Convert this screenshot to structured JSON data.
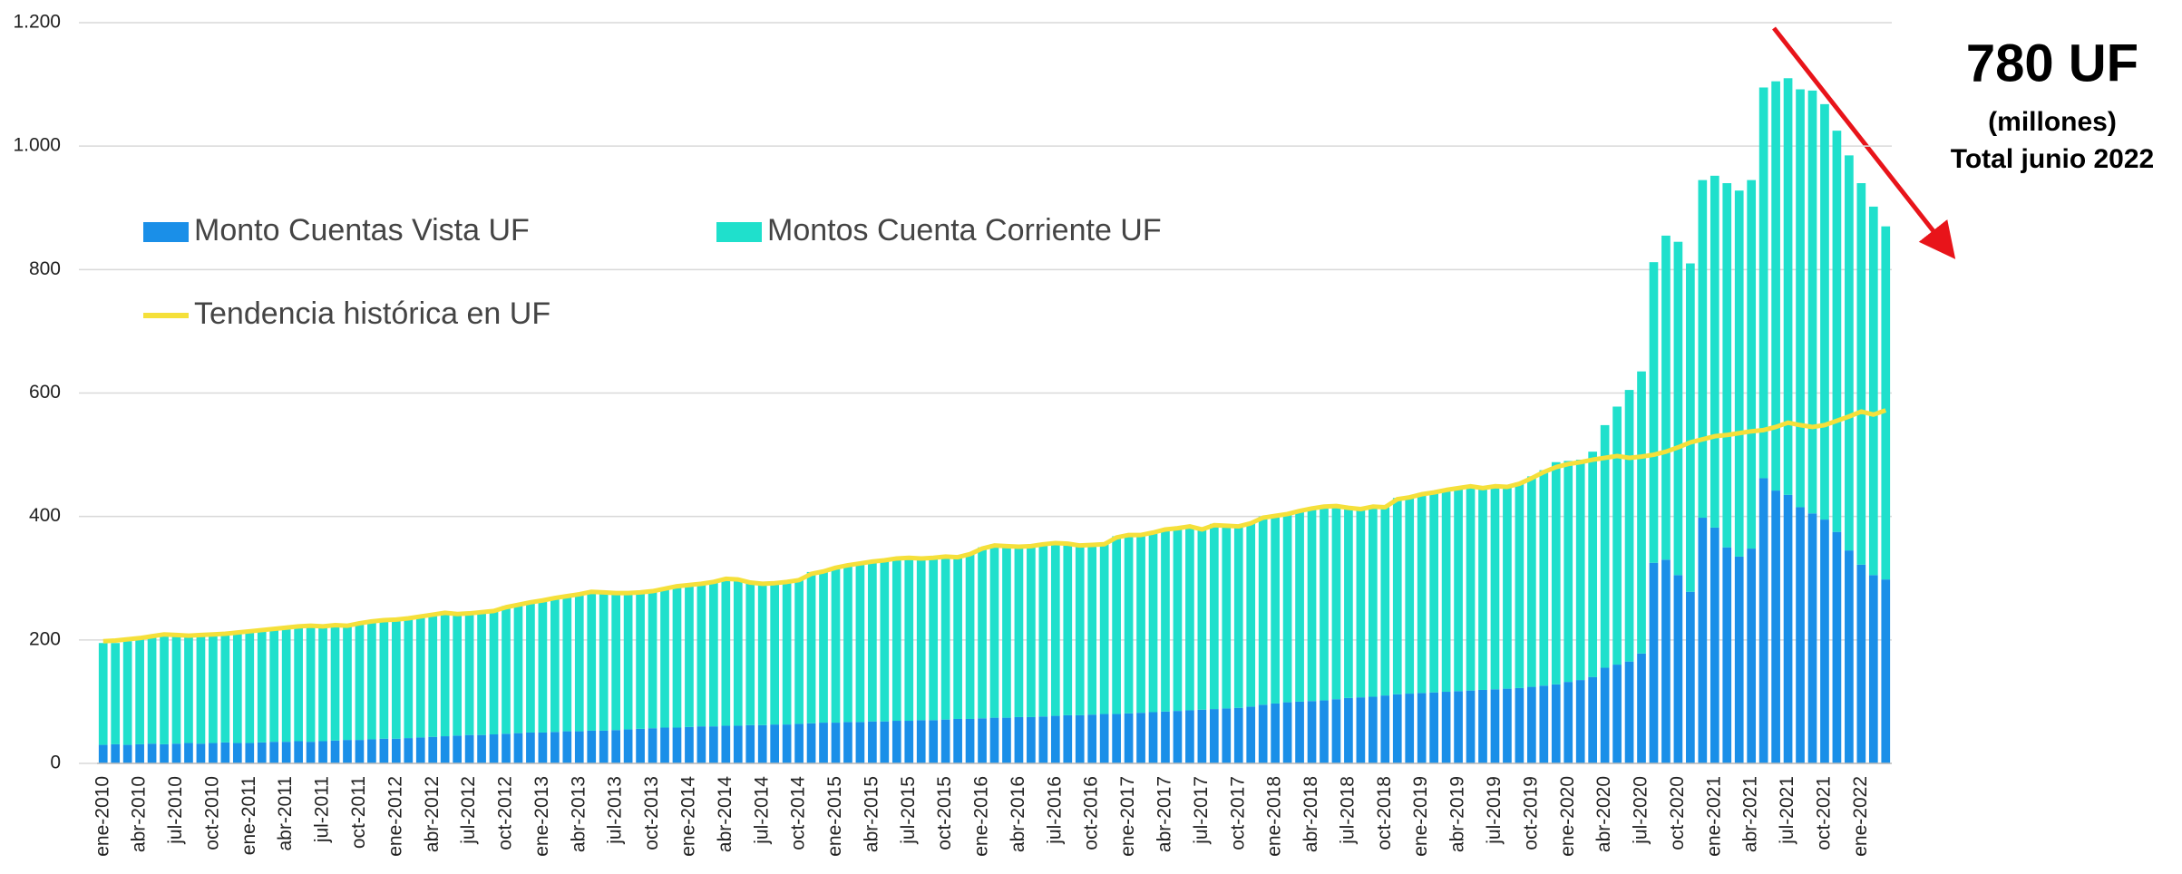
{
  "chart_data": {
    "type": "bar",
    "stacked": true,
    "grid": true,
    "categories": [
      "ene-2010",
      null,
      null,
      "abr-2010",
      null,
      null,
      "jul-2010",
      null,
      null,
      "oct-2010",
      null,
      null,
      "ene-2011",
      null,
      null,
      "abr-2011",
      null,
      null,
      "jul-2011",
      null,
      null,
      "oct-2011",
      null,
      null,
      "ene-2012",
      null,
      null,
      "abr-2012",
      null,
      null,
      "jul-2012",
      null,
      null,
      "oct-2012",
      null,
      null,
      "ene-2013",
      null,
      null,
      "abr-2013",
      null,
      null,
      "jul-2013",
      null,
      null,
      "oct-2013",
      null,
      null,
      "ene-2014",
      null,
      null,
      "abr-2014",
      null,
      null,
      "jul-2014",
      null,
      null,
      "oct-2014",
      null,
      null,
      "ene-2015",
      null,
      null,
      "abr-2015",
      null,
      null,
      "jul-2015",
      null,
      null,
      "oct-2015",
      null,
      null,
      "ene-2016",
      null,
      null,
      "abr-2016",
      null,
      null,
      "jul-2016",
      null,
      null,
      "oct-2016",
      null,
      null,
      "ene-2017",
      null,
      null,
      "abr-2017",
      null,
      null,
      "jul-2017",
      null,
      null,
      "oct-2017",
      null,
      null,
      "ene-2018",
      null,
      null,
      "abr-2018",
      null,
      null,
      "jul-2018",
      null,
      null,
      "oct-2018",
      null,
      null,
      "ene-2019",
      null,
      null,
      "abr-2019",
      null,
      null,
      "jul-2019",
      null,
      null,
      "oct-2019",
      null,
      null,
      "ene-2020",
      null,
      null,
      "abr-2020",
      null,
      null,
      "jul-2020",
      null,
      null,
      "oct-2020",
      null,
      null,
      "ene-2021",
      null,
      null,
      "abr-2021",
      null,
      null,
      "jul-2021",
      null,
      null,
      "oct-2021",
      null,
      null,
      "ene-2022",
      null,
      null
    ],
    "series": [
      {
        "name": "Monto Cuentas Vista UF",
        "color": "#1a8fe8",
        "type": "bar",
        "values": [
          30,
          31,
          30,
          31,
          32,
          31,
          32,
          33,
          32,
          33,
          34,
          33,
          33,
          34,
          35,
          35,
          36,
          35,
          36,
          37,
          38,
          38,
          39,
          40,
          40,
          41,
          42,
          43,
          44,
          45,
          46,
          46,
          47,
          48,
          49,
          50,
          50,
          51,
          52,
          52,
          53,
          53,
          54,
          55,
          56,
          57,
          58,
          58,
          59,
          60,
          60,
          61,
          61,
          62,
          62,
          63,
          63,
          64,
          65,
          66,
          66,
          67,
          67,
          68,
          68,
          69,
          69,
          70,
          70,
          71,
          72,
          72,
          73,
          74,
          74,
          75,
          75,
          76,
          77,
          78,
          78,
          79,
          80,
          80,
          81,
          82,
          83,
          84,
          85,
          86,
          87,
          88,
          89,
          90,
          92,
          95,
          97,
          99,
          100,
          101,
          102,
          104,
          106,
          107,
          108,
          110,
          112,
          113,
          114,
          115,
          116,
          117,
          118,
          119,
          120,
          121,
          122,
          124,
          126,
          128,
          132,
          135,
          140,
          155,
          160,
          165,
          178,
          325,
          330,
          305,
          278,
          398,
          382,
          350,
          335,
          348,
          462,
          442,
          435,
          415,
          405,
          395,
          375,
          345,
          322,
          305,
          298
        ]
      },
      {
        "name": "Montos Cuenta Corriente UF",
        "color": "#1fe0cc",
        "type": "bar",
        "values": [
          165,
          164,
          168,
          171,
          173,
          177,
          173,
          172,
          175,
          175,
          176,
          179,
          180,
          181,
          183,
          185,
          186,
          187,
          184,
          188,
          184,
          190,
          191,
          192,
          192,
          194,
          196,
          199,
          201,
          195,
          198,
          199,
          199,
          207,
          209,
          212,
          215,
          217,
          220,
          223,
          227,
          225,
          222,
          220,
          222,
          223,
          227,
          230,
          231,
          232,
          235,
          239,
          237,
          230,
          228,
          229,
          232,
          234,
          245,
          246,
          252,
          255,
          258,
          260,
          262,
          264,
          266,
          262,
          264,
          265,
          262,
          268,
          277,
          281,
          278,
          275,
          277,
          279,
          281,
          278,
          274,
          275,
          275,
          288,
          291,
          288,
          292,
          296,
          297,
          299,
          291,
          300,
          296,
          293,
          298,
          305,
          305,
          306,
          310,
          314,
          316,
          314,
          309,
          305,
          310,
          305,
          318,
          319,
          324,
          325,
          329,
          331,
          332,
          326,
          330,
          327,
          333,
          341,
          349,
          360,
          358,
          357,
          365,
          393,
          418,
          440,
          457,
          487,
          525,
          540,
          532,
          547,
          570,
          590,
          593,
          597,
          633,
          663,
          675,
          677,
          685,
          673,
          650,
          640,
          618,
          597,
          572
        ]
      },
      {
        "name": "Tendencia histórica en UF",
        "color": "#f5e03a",
        "type": "line",
        "values": [
          198,
          199,
          201,
          203,
          206,
          209,
          208,
          207,
          208,
          209,
          210,
          212,
          214,
          216,
          218,
          220,
          222,
          223,
          222,
          224,
          223,
          227,
          230,
          232,
          233,
          235,
          238,
          241,
          244,
          242,
          243,
          245,
          247,
          253,
          257,
          261,
          264,
          268,
          271,
          274,
          278,
          277,
          276,
          276,
          277,
          279,
          283,
          287,
          289,
          291,
          294,
          299,
          298,
          293,
          291,
          292,
          294,
          297,
          307,
          311,
          317,
          321,
          324,
          327,
          329,
          332,
          333,
          332,
          333,
          335,
          334,
          339,
          348,
          353,
          352,
          351,
          352,
          355,
          357,
          356,
          353,
          354,
          355,
          366,
          370,
          370,
          374,
          379,
          381,
          384,
          379,
          386,
          385,
          384,
          389,
          398,
          401,
          404,
          409,
          413,
          416,
          417,
          414,
          412,
          416,
          415,
          428,
          431,
          436,
          439,
          443,
          446,
          449,
          446,
          449,
          448,
          453,
          462,
          472,
          480,
          485,
          488,
          492,
          495,
          498,
          495,
          497,
          500,
          505,
          512,
          520,
          525,
          530,
          532,
          535,
          538,
          540,
          545,
          552,
          548,
          545,
          548,
          555,
          562,
          570,
          565,
          572
        ]
      }
    ],
    "ylim": [
      0,
      1200
    ],
    "yticks": [
      0,
      200,
      400,
      600,
      800,
      {
        "value": 1000,
        "label": "1.000"
      },
      {
        "value": 1200,
        "label": "1.200"
      }
    ],
    "annotations": [
      "780 UF",
      "(millones)",
      "Total junio 2022"
    ]
  }
}
